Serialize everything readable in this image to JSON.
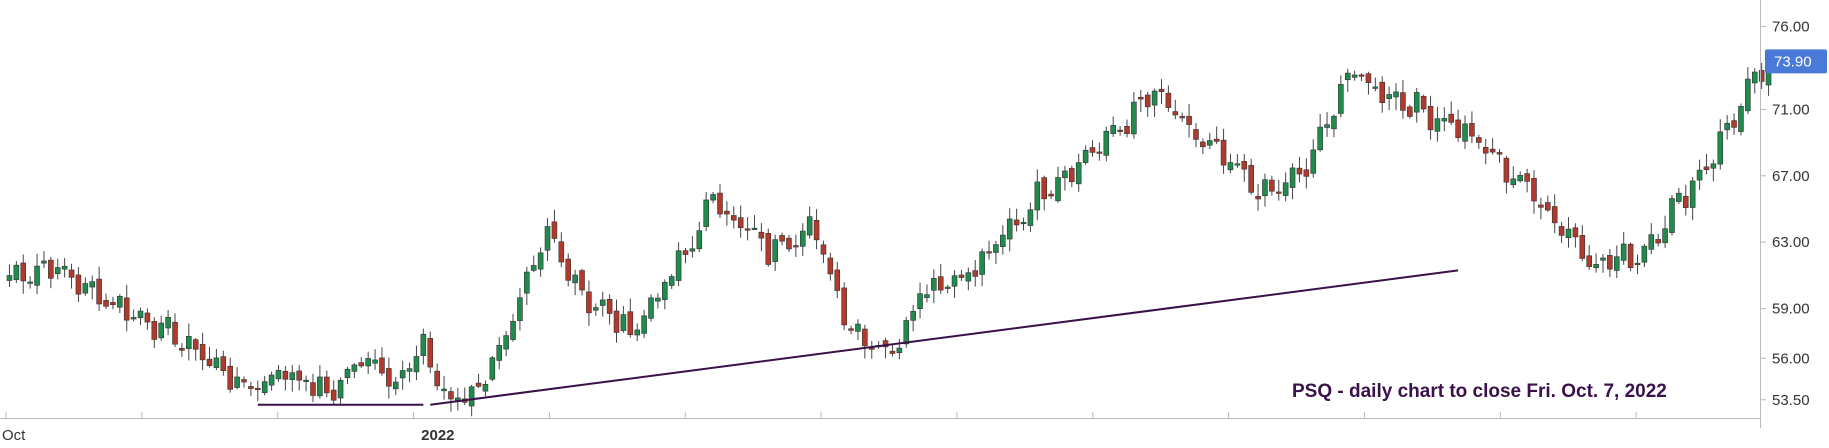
{
  "chart_data": {
    "type": "candlestick",
    "ticker_annotation": "PSQ - daily chart to close Fri. Oct. 7, 2022",
    "ylim": [
      52.4,
      77.6
    ],
    "y_axis_position": "right",
    "y_ticks": [
      "76.00",
      "71.00",
      "67.00",
      "63.00",
      "59.00",
      "56.00",
      "53.50"
    ],
    "x_labels": [
      {
        "label": "Oct",
        "index": 0,
        "bold": false
      },
      {
        "label": "2022",
        "index": 62,
        "bold": true
      }
    ],
    "last_price": "73.90",
    "n_candles": 256,
    "anchors": [
      [
        0,
        61.0
      ],
      [
        6,
        61.6
      ],
      [
        12,
        60.0
      ],
      [
        20,
        58.3
      ],
      [
        28,
        56.2
      ],
      [
        34,
        54.2
      ],
      [
        40,
        55.3
      ],
      [
        46,
        53.8
      ],
      [
        52,
        56.2
      ],
      [
        56,
        54.7
      ],
      [
        60,
        56.5
      ],
      [
        64,
        53.2
      ],
      [
        68,
        54.3
      ],
      [
        74,
        59.2
      ],
      [
        78,
        63.4
      ],
      [
        84,
        59.5
      ],
      [
        90,
        57.6
      ],
      [
        98,
        62.2
      ],
      [
        102,
        65.7
      ],
      [
        110,
        62.4
      ],
      [
        116,
        64.2
      ],
      [
        122,
        57.9
      ],
      [
        128,
        56.3
      ],
      [
        132,
        60.2
      ],
      [
        140,
        61.3
      ],
      [
        150,
        66.3
      ],
      [
        158,
        68.8
      ],
      [
        166,
        71.9
      ],
      [
        172,
        69.3
      ],
      [
        182,
        65.8
      ],
      [
        188,
        67.3
      ],
      [
        194,
        73.2
      ],
      [
        204,
        71.1
      ],
      [
        210,
        70.0
      ],
      [
        220,
        66.3
      ],
      [
        230,
        61.7
      ],
      [
        236,
        62.2
      ],
      [
        246,
        67.7
      ],
      [
        252,
        72.0
      ],
      [
        255,
        73.9
      ]
    ],
    "trendlines": [
      {
        "from": [
          36,
          53.2
        ],
        "to": [
          60,
          53.2
        ]
      },
      {
        "from": [
          61,
          53.2
        ],
        "to": [
          210,
          61.3
        ]
      }
    ],
    "colors": {
      "up": "#1f8b4c",
      "down": "#b23a2c",
      "wick": "#444444",
      "trendline": "#3a1148",
      "axis": "#bbbbbb",
      "last_price_bg": "#4a7ad8"
    }
  }
}
